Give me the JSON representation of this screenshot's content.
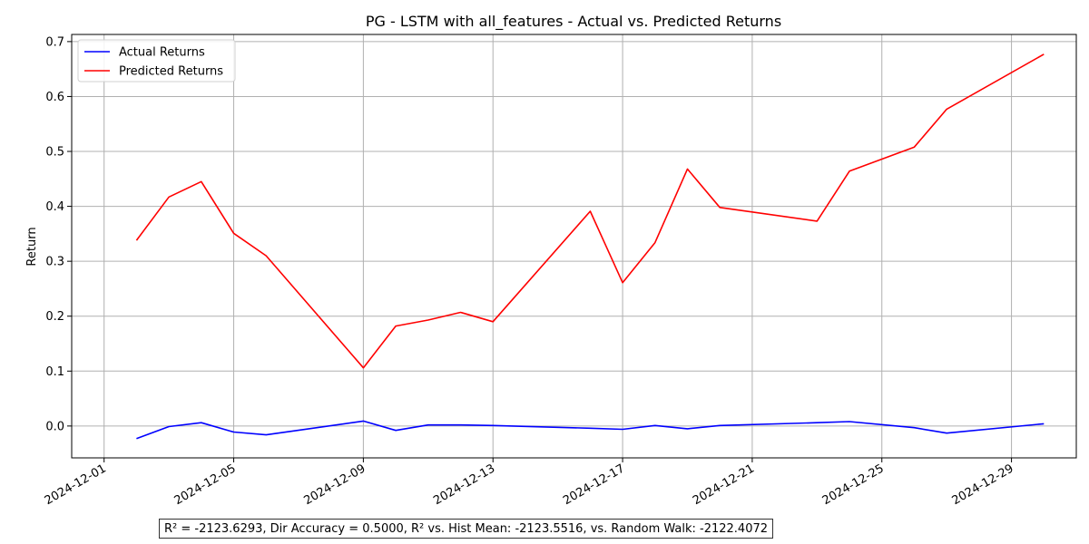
{
  "chart_data": {
    "type": "line",
    "title": "PG - LSTM with all_features - Actual vs. Predicted Returns",
    "xlabel": "",
    "ylabel": "Return",
    "xlim": [
      "2024-11-30",
      "2024-12-31"
    ],
    "ylim": [
      -0.058,
      0.713
    ],
    "x_ticks": [
      "2024-12-01",
      "2024-12-05",
      "2024-12-09",
      "2024-12-13",
      "2024-12-17",
      "2024-12-21",
      "2024-12-25",
      "2024-12-29"
    ],
    "y_ticks": [
      0.0,
      0.1,
      0.2,
      0.3,
      0.4,
      0.5,
      0.6,
      0.7
    ],
    "y_tick_labels": [
      "0.0",
      "0.1",
      "0.2",
      "0.3",
      "0.4",
      "0.5",
      "0.6",
      "0.7"
    ],
    "grid": true,
    "legend_position": "top-left",
    "series": [
      {
        "name": "Actual Returns",
        "color": "#0000ff",
        "points": [
          [
            "2024-12-02",
            -0.023
          ],
          [
            "2024-12-03",
            -0.001
          ],
          [
            "2024-12-04",
            0.006
          ],
          [
            "2024-12-05",
            -0.011
          ],
          [
            "2024-12-06",
            -0.016
          ],
          [
            "2024-12-09",
            0.009
          ],
          [
            "2024-12-10",
            -0.008
          ],
          [
            "2024-12-11",
            0.002
          ],
          [
            "2024-12-12",
            0.002
          ],
          [
            "2024-12-13",
            0.001
          ],
          [
            "2024-12-16",
            -0.004
          ],
          [
            "2024-12-17",
            -0.006
          ],
          [
            "2024-12-18",
            0.001
          ],
          [
            "2024-12-19",
            -0.005
          ],
          [
            "2024-12-20",
            0.001
          ],
          [
            "2024-12-23",
            0.006
          ],
          [
            "2024-12-24",
            0.008
          ],
          [
            "2024-12-26",
            -0.003
          ],
          [
            "2024-12-27",
            -0.013
          ],
          [
            "2024-12-30",
            0.004
          ]
        ]
      },
      {
        "name": "Predicted Returns",
        "color": "#ff0000",
        "points": [
          [
            "2024-12-02",
            0.338
          ],
          [
            "2024-12-03",
            0.417
          ],
          [
            "2024-12-04",
            0.445
          ],
          [
            "2024-12-05",
            0.351
          ],
          [
            "2024-12-06",
            0.31
          ],
          [
            "2024-12-09",
            0.106
          ],
          [
            "2024-12-10",
            0.182
          ],
          [
            "2024-12-11",
            0.193
          ],
          [
            "2024-12-12",
            0.207
          ],
          [
            "2024-12-13",
            0.19
          ],
          [
            "2024-12-16",
            0.391
          ],
          [
            "2024-12-17",
            0.261
          ],
          [
            "2024-12-18",
            0.334
          ],
          [
            "2024-12-19",
            0.468
          ],
          [
            "2024-12-20",
            0.398
          ],
          [
            "2024-12-23",
            0.373
          ],
          [
            "2024-12-24",
            0.464
          ],
          [
            "2024-12-26",
            0.508
          ],
          [
            "2024-12-27",
            0.577
          ],
          [
            "2024-12-30",
            0.677
          ]
        ]
      }
    ],
    "annotation": "R² = -2123.6293, Dir Accuracy = 0.5000, R² vs. Hist Mean: -2123.5516, vs. Random Walk: -2122.4072"
  }
}
